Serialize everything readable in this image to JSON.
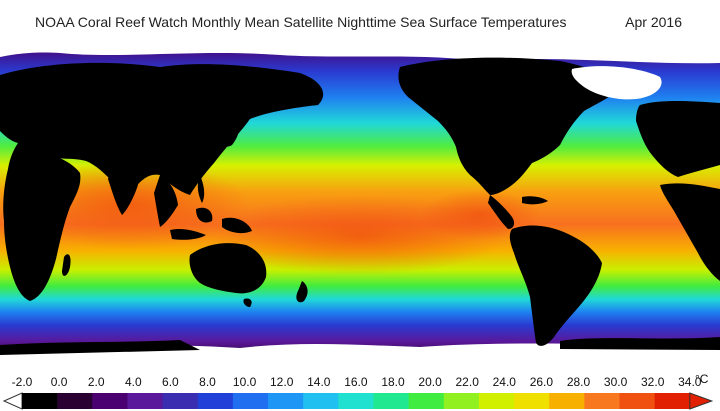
{
  "title": "NOAA Coral Reef Watch Monthly Mean Satellite Nighttime Sea Surface Temperatures",
  "date": "Apr 2016",
  "legend": {
    "unit": "°C",
    "ticks": [
      "-2.0",
      "0.0",
      "2.0",
      "4.0",
      "6.0",
      "8.0",
      "10.0",
      "12.0",
      "14.0",
      "16.0",
      "18.0",
      "20.0",
      "22.0",
      "24.0",
      "26.0",
      "28.0",
      "30.0",
      "32.0",
      "34.0"
    ]
  },
  "colors": {
    "land": "#000000",
    "ice": "#ffffff",
    "scale": [
      "#000000",
      "#2a0033",
      "#4a0070",
      "#5a189a",
      "#3a2db0",
      "#2040d8",
      "#1f6ff0",
      "#1e96f5",
      "#20c0f0",
      "#20e0d0",
      "#20e890",
      "#40ec40",
      "#90f020",
      "#d0f000",
      "#f0e000",
      "#f8b000",
      "#f87820",
      "#f05010",
      "#e02000"
    ]
  }
}
